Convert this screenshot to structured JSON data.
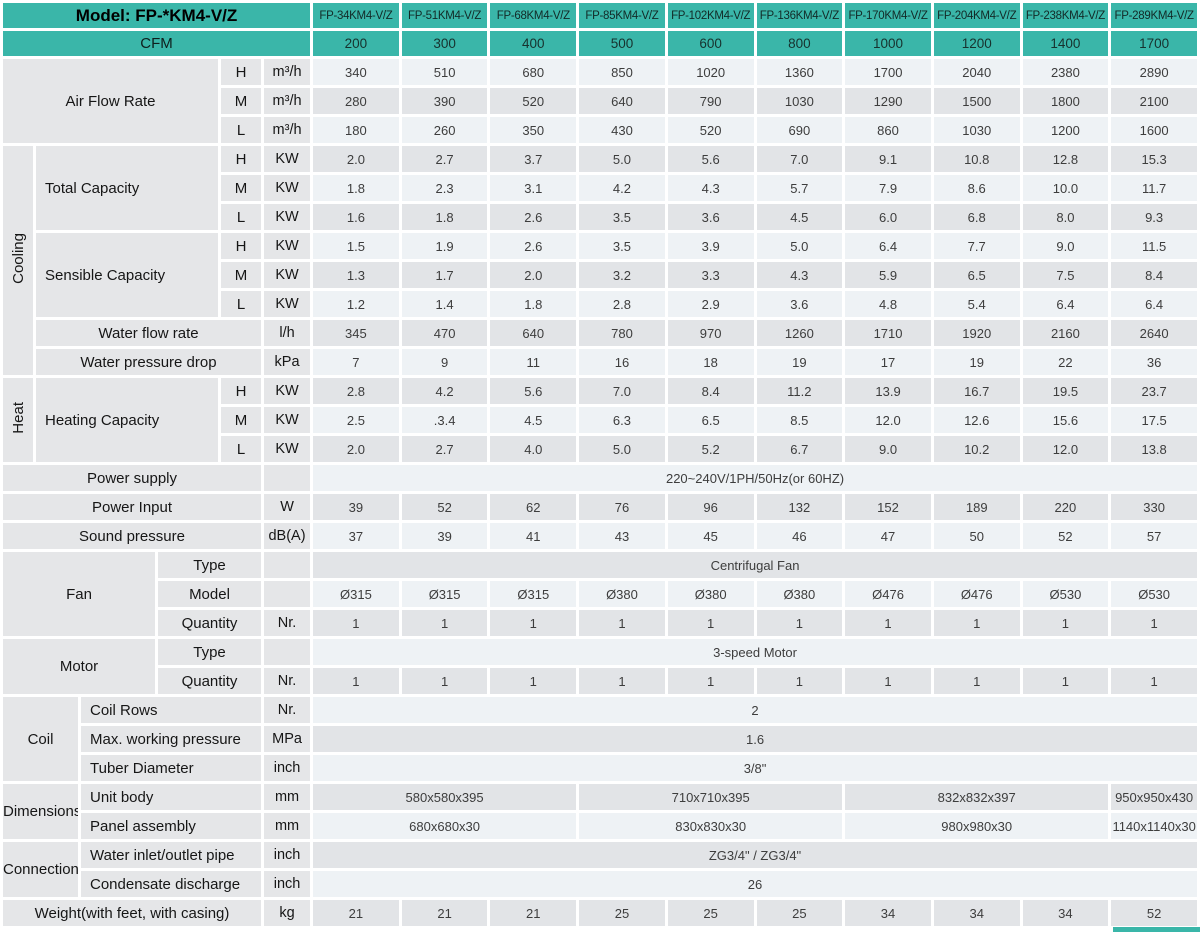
{
  "colors": {
    "teal": "#3ab6a9",
    "row_light": "#eef2f5",
    "row_dark": "#e2e4e7",
    "label_bg": "#e5e6e8"
  },
  "header": {
    "model_label": "Model: FP-*KM4-V/Z",
    "cfm_label": "CFM",
    "models": [
      "FP-34KM4-V/Z",
      "FP-51KM4-V/Z",
      "FP-68KM4-V/Z",
      "FP-85KM4-V/Z",
      "FP-102KM4-V/Z",
      "FP-136KM4-V/Z",
      "FP-170KM4-V/Z",
      "FP-204KM4-V/Z",
      "FP-238KM4-V/Z",
      "FP-289KM4-V/Z"
    ],
    "cfm": [
      "200",
      "300",
      "400",
      "500",
      "600",
      "800",
      "1000",
      "1200",
      "1400",
      "1700"
    ]
  },
  "groups": {
    "air_flow_rate": "Air Flow Rate",
    "cooling": "Cooling",
    "total_capacity": "Total Capacity",
    "sensible_capacity": "Sensible Capacity",
    "heat": "Heat",
    "heating_capacity": "Heating Capacity",
    "fan": "Fan",
    "motor": "Motor",
    "coil": "Coil",
    "dimensions": "Dimensions",
    "connection": "Connection"
  },
  "rows": {
    "af_h": {
      "speed": "H",
      "unit": "m³/h",
      "values": [
        "340",
        "510",
        "680",
        "850",
        "1020",
        "1360",
        "1700",
        "2040",
        "2380",
        "2890"
      ]
    },
    "af_m": {
      "speed": "M",
      "unit": "m³/h",
      "values": [
        "280",
        "390",
        "520",
        "640",
        "790",
        "1030",
        "1290",
        "1500",
        "1800",
        "2100"
      ]
    },
    "af_l": {
      "speed": "L",
      "unit": "m³/h",
      "values": [
        "180",
        "260",
        "350",
        "430",
        "520",
        "690",
        "860",
        "1030",
        "1200",
        "1600"
      ]
    },
    "tc_h": {
      "speed": "H",
      "unit": "KW",
      "values": [
        "2.0",
        "2.7",
        "3.7",
        "5.0",
        "5.6",
        "7.0",
        "9.1",
        "10.8",
        "12.8",
        "15.3"
      ]
    },
    "tc_m": {
      "speed": "M",
      "unit": "KW",
      "values": [
        "1.8",
        "2.3",
        "3.1",
        "4.2",
        "4.3",
        "5.7",
        "7.9",
        "8.6",
        "10.0",
        "11.7"
      ]
    },
    "tc_l": {
      "speed": "L",
      "unit": "KW",
      "values": [
        "1.6",
        "1.8",
        "2.6",
        "3.5",
        "3.6",
        "4.5",
        "6.0",
        "6.8",
        "8.0",
        "9.3"
      ]
    },
    "sc_h": {
      "speed": "H",
      "unit": "KW",
      "values": [
        "1.5",
        "1.9",
        "2.6",
        "3.5",
        "3.9",
        "5.0",
        "6.4",
        "7.7",
        "9.0",
        "11.5"
      ]
    },
    "sc_m": {
      "speed": "M",
      "unit": "KW",
      "values": [
        "1.3",
        "1.7",
        "2.0",
        "3.2",
        "3.3",
        "4.3",
        "5.9",
        "6.5",
        "7.5",
        "8.4"
      ]
    },
    "sc_l": {
      "speed": "L",
      "unit": "KW",
      "values": [
        "1.2",
        "1.4",
        "1.8",
        "2.8",
        "2.9",
        "3.6",
        "4.8",
        "5.4",
        "6.4",
        "6.4"
      ]
    },
    "wfr": {
      "label": "Water flow rate",
      "unit": "l/h",
      "values": [
        "345",
        "470",
        "640",
        "780",
        "970",
        "1260",
        "1710",
        "1920",
        "2160",
        "2640"
      ]
    },
    "wpd": {
      "label": "Water pressure drop",
      "unit": "kPa",
      "values": [
        "7",
        "9",
        "11",
        "16",
        "18",
        "19",
        "17",
        "19",
        "22",
        "36"
      ]
    },
    "hc_h": {
      "speed": "H",
      "unit": "KW",
      "values": [
        "2.8",
        "4.2",
        "5.6",
        "7.0",
        "8.4",
        "11.2",
        "13.9",
        "16.7",
        "19.5",
        "23.7"
      ]
    },
    "hc_m": {
      "speed": "M",
      "unit": "KW",
      "values": [
        "2.5",
        ".3.4",
        "4.5",
        "6.3",
        "6.5",
        "8.5",
        "12.0",
        "12.6",
        "15.6",
        "17.5"
      ]
    },
    "hc_l": {
      "speed": "L",
      "unit": "KW",
      "values": [
        "2.0",
        "2.7",
        "4.0",
        "5.0",
        "5.2",
        "6.7",
        "9.0",
        "10.2",
        "12.0",
        "13.8"
      ]
    },
    "power_supply": {
      "label": "Power supply",
      "unit": "",
      "span": "220~240V/1PH/50Hz(or 60HZ)"
    },
    "power_input": {
      "label": "Power Input",
      "unit": "W",
      "values": [
        "39",
        "52",
        "62",
        "76",
        "96",
        "132",
        "152",
        "189",
        "220",
        "330"
      ]
    },
    "sound_pressure": {
      "label": "Sound pressure",
      "unit": "dB(A)",
      "values": [
        "37",
        "39",
        "41",
        "43",
        "45",
        "46",
        "47",
        "50",
        "52",
        "57"
      ]
    },
    "fan_type": {
      "label": "Type",
      "unit": "",
      "span": "Centrifugal Fan"
    },
    "fan_model": {
      "label": "Model",
      "unit": "",
      "values": [
        "Ø315",
        "Ø315",
        "Ø315",
        "Ø380",
        "Ø380",
        "Ø380",
        "Ø476",
        "Ø476",
        "Ø530",
        "Ø530"
      ]
    },
    "fan_qty": {
      "label": "Quantity",
      "unit": "Nr.",
      "values": [
        "1",
        "1",
        "1",
        "1",
        "1",
        "1",
        "1",
        "1",
        "1",
        "1"
      ]
    },
    "motor_type": {
      "label": "Type",
      "unit": "",
      "span": "3-speed Motor"
    },
    "motor_qty": {
      "label": "Quantity",
      "unit": "Nr.",
      "values": [
        "1",
        "1",
        "1",
        "1",
        "1",
        "1",
        "1",
        "1",
        "1",
        "1"
      ]
    },
    "coil_rows": {
      "label": "Coil Rows",
      "unit": "Nr.",
      "span": "2"
    },
    "coil_pressure": {
      "label": "Max. working pressure",
      "unit": "MPa",
      "span": "1.6"
    },
    "coil_tuber": {
      "label": "Tuber Diameter",
      "unit": "inch",
      "span": "3/8\""
    },
    "dim_body": {
      "label": "Unit body",
      "unit": "mm",
      "groups": [
        "580x580x395",
        "710x710x395",
        "832x832x397",
        "950x950x430"
      ]
    },
    "dim_panel": {
      "label": "Panel assembly",
      "unit": "mm",
      "groups": [
        "680x680x30",
        "830x830x30",
        "980x980x30",
        "1140x1140x30"
      ]
    },
    "conn_pipe": {
      "label": "Water inlet/outlet pipe",
      "unit": "inch",
      "span": "ZG3/4\" / ZG3/4\""
    },
    "conn_cond": {
      "label": "Condensate discharge",
      "unit": "inch",
      "span": "26"
    },
    "weight": {
      "label": "Weight(with feet, with casing)",
      "unit": "kg",
      "values": [
        "21",
        "21",
        "21",
        "25",
        "25",
        "25",
        "34",
        "34",
        "34",
        "52"
      ]
    }
  }
}
